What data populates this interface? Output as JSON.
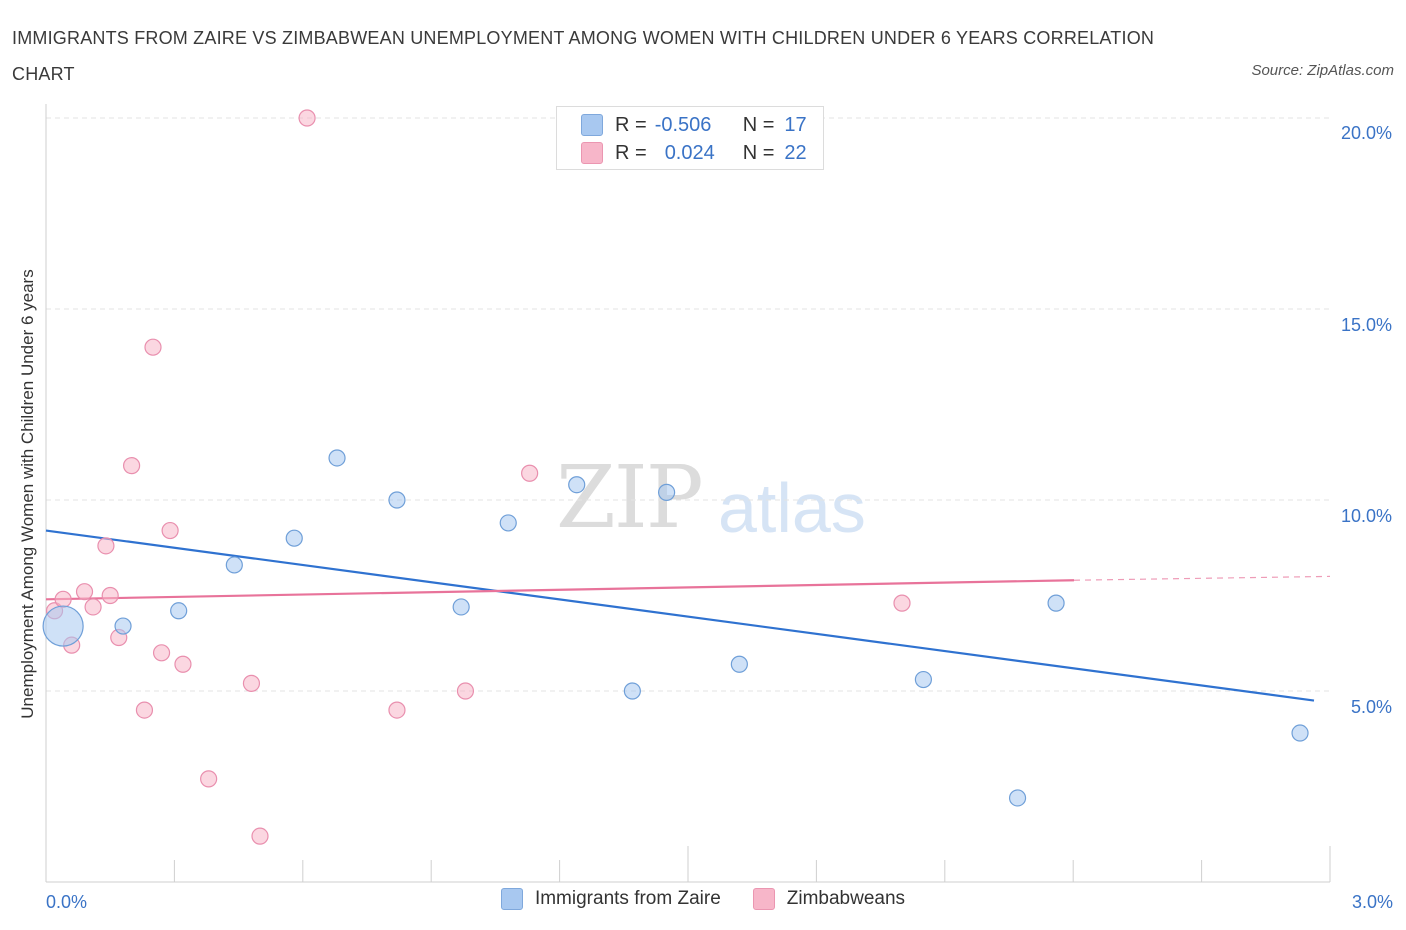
{
  "title": "IMMIGRANTS FROM ZAIRE VS ZIMBABWEAN UNEMPLOYMENT AMONG WOMEN WITH CHILDREN UNDER 6 YEARS CORRELATION CHART",
  "source": "Source: ZipAtlas.com",
  "watermark": {
    "zip": "ZIP",
    "atlas": "atlas"
  },
  "stats": [
    {
      "r_label": "R =",
      "r_value": "-0.506",
      "n_label": "N =",
      "n_value": "17",
      "color": "#a8c8f0"
    },
    {
      "r_label": "R =",
      "r_value": "0.024",
      "n_label": "N =",
      "n_value": "22",
      "color": "#f7b6c9"
    }
  ],
  "chart_data": {
    "type": "scatter",
    "title": "IMMIGRANTS FROM ZAIRE VS ZIMBABWEAN UNEMPLOYMENT AMONG WOMEN WITH CHILDREN UNDER 6 YEARS CORRELATION CHART",
    "xlabel": "",
    "ylabel": "Unemployment Among Women with Children Under 6 years",
    "xlim": [
      0,
      3
    ],
    "ylim": [
      0,
      20
    ],
    "x_tick_labels": [
      "0.0%",
      "3.0%"
    ],
    "y_ticks": [
      5,
      10,
      15,
      20
    ],
    "y_tick_labels": [
      "5.0%",
      "10.0%",
      "15.0%",
      "20.0%"
    ],
    "grid": true,
    "legend_position": "bottom-center",
    "series": [
      {
        "name": "Immigrants from Zaire",
        "color": "#a8c8f0",
        "line_color": "#2f72d0",
        "points": [
          [
            0.04,
            6.7
          ],
          [
            0.18,
            6.7
          ],
          [
            0.31,
            7.1
          ],
          [
            0.44,
            8.3
          ],
          [
            0.58,
            9.0
          ],
          [
            0.68,
            11.1
          ],
          [
            0.82,
            10.0
          ],
          [
            0.97,
            7.2
          ],
          [
            1.08,
            9.4
          ],
          [
            1.24,
            10.4
          ],
          [
            1.37,
            5.0
          ],
          [
            1.45,
            10.2
          ],
          [
            1.62,
            5.7
          ],
          [
            2.05,
            5.3
          ],
          [
            2.27,
            2.2
          ],
          [
            2.36,
            7.3
          ],
          [
            2.93,
            3.9
          ]
        ],
        "trend": [
          [
            0,
            9.2
          ],
          [
            3,
            4.7
          ]
        ]
      },
      {
        "name": "Zimbabweans",
        "color": "#f7b6c9",
        "line_color": "#e8739a",
        "points": [
          [
            0.02,
            7.1
          ],
          [
            0.04,
            7.4
          ],
          [
            0.06,
            6.2
          ],
          [
            0.09,
            7.6
          ],
          [
            0.11,
            7.2
          ],
          [
            0.14,
            8.8
          ],
          [
            0.15,
            7.5
          ],
          [
            0.17,
            6.4
          ],
          [
            0.2,
            10.9
          ],
          [
            0.23,
            4.5
          ],
          [
            0.25,
            14.0
          ],
          [
            0.27,
            6.0
          ],
          [
            0.29,
            9.2
          ],
          [
            0.32,
            5.7
          ],
          [
            0.38,
            2.7
          ],
          [
            0.48,
            5.2
          ],
          [
            0.5,
            1.2
          ],
          [
            0.61,
            20.0
          ],
          [
            0.82,
            4.5
          ],
          [
            0.98,
            5.0
          ],
          [
            1.13,
            10.7
          ],
          [
            2.0,
            7.3
          ]
        ],
        "trend": [
          [
            0,
            7.4
          ],
          [
            2.5,
            7.9
          ]
        ],
        "trend_dashed": [
          [
            2.5,
            7.9
          ],
          [
            3,
            8.0
          ]
        ]
      }
    ]
  }
}
